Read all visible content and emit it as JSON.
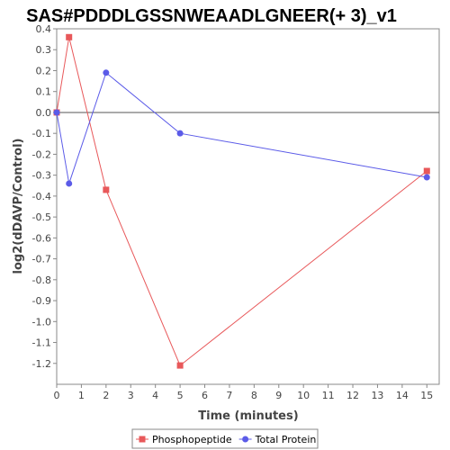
{
  "chart_data": {
    "type": "line",
    "title": "SAS#PDDDLGSSNWEAADLGNEER(+ 3)_v1",
    "xlabel": "Time (minutes)",
    "ylabel": "log2(dDAVP/Control)",
    "xlim": [
      0,
      15.5
    ],
    "ylim": [
      -1.3,
      0.4
    ],
    "x_ticks": [
      "0",
      "1",
      "2",
      "3",
      "4",
      "5",
      "6",
      "7",
      "8",
      "9",
      "10",
      "11",
      "12",
      "13",
      "14",
      "15"
    ],
    "y_ticks": [
      "0.4",
      "0.3",
      "0.2",
      "0.1",
      "0.0",
      "-0.1",
      "-0.2",
      "-0.3",
      "-0.4",
      "-0.5",
      "-0.6",
      "-0.7",
      "-0.8",
      "-0.9",
      "-1.0",
      "-1.1",
      "-1.2"
    ],
    "grid": false,
    "zero_line": true,
    "legend_position": "bottom",
    "series": [
      {
        "name": "Phosphopeptide",
        "color": "#e8585a",
        "marker": "square",
        "x": [
          0,
          0.5,
          2,
          5,
          15
        ],
        "y": [
          0.0,
          0.36,
          -0.37,
          -1.21,
          -0.28
        ]
      },
      {
        "name": "Total Protein",
        "color": "#5b5be8",
        "marker": "circle",
        "x": [
          0,
          0.5,
          2,
          5,
          15
        ],
        "y": [
          0.0,
          -0.34,
          0.19,
          -0.1,
          -0.31
        ]
      }
    ]
  }
}
